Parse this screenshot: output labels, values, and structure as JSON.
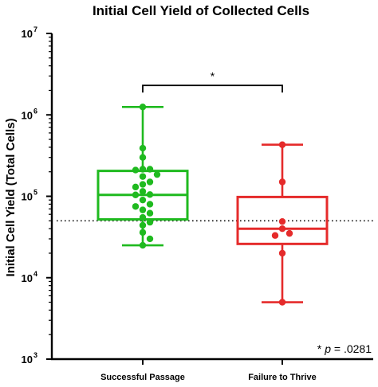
{
  "chart_data": {
    "type": "box",
    "title": "Initial Cell Yield of Collected Cells",
    "ylabel": "Initial Cell Yield (Total Cells)",
    "xlabel": "",
    "yscale": "log",
    "ylim": [
      1000,
      10000000
    ],
    "yticks": [
      {
        "value": 1000,
        "base": "10",
        "exp": "3"
      },
      {
        "value": 10000,
        "base": "10",
        "exp": "4"
      },
      {
        "value": 100000,
        "base": "10",
        "exp": "5"
      },
      {
        "value": 1000000,
        "base": "10",
        "exp": "6"
      },
      {
        "value": 10000000,
        "base": "10",
        "exp": "7"
      }
    ],
    "categories": [
      "Successful Passage",
      "Failure to Thrive"
    ],
    "reference_line": 50000,
    "groups": [
      {
        "category": "Successful Passage",
        "color": "#1fba1f",
        "box": {
          "min": 25000,
          "q1": 52000,
          "median": 104000,
          "q3": 205000,
          "max": 1250000
        },
        "points": [
          1250000,
          390000,
          300000,
          215000,
          215000,
          210000,
          185000,
          175000,
          150000,
          140000,
          130000,
          115000,
          105000,
          104000,
          90000,
          80000,
          75000,
          68000,
          62000,
          55000,
          48000,
          44000,
          36000,
          30000,
          25000
        ]
      },
      {
        "category": "Failure to Thrive",
        "color": "#e52b2b",
        "box": {
          "min": 5000,
          "q1": 26000,
          "median": 40000,
          "q3": 98000,
          "max": 430000
        },
        "points": [
          430000,
          150000,
          49000,
          40000,
          35000,
          33000,
          20000,
          5000
        ]
      }
    ],
    "significance": {
      "label": "*",
      "between": [
        "Successful Passage",
        "Failure to Thrive"
      ],
      "y": 2300000
    },
    "annotation": {
      "star": "*",
      "p_symbol": "p",
      "text": " = .0281"
    },
    "grid": false,
    "legend": "none"
  }
}
